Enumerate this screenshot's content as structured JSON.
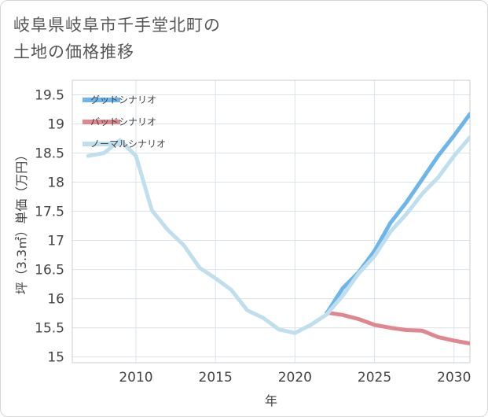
{
  "title_lines": [
    "岐阜県岐阜市千手堂北町の",
    "土地の価格推移"
  ],
  "colors": {
    "good": "#6cb6ec",
    "bad": "#e0868f",
    "normal": "#bfdfee",
    "grid": "#dbe3ea",
    "border": "#cccccc"
  },
  "chart_data": {
    "type": "line",
    "title": "岐阜県岐阜市千手堂北町の土地の価格推移",
    "xlabel": "年",
    "ylabel": "坪（3.3㎡）単価（万円）",
    "xlim": [
      2006,
      2031
    ],
    "ylim": [
      14.9,
      19.75
    ],
    "xticks": [
      2010,
      2015,
      2020,
      2025,
      2030
    ],
    "yticks": [
      15,
      15.5,
      16,
      16.5,
      17,
      17.5,
      18,
      18.5,
      19,
      19.5
    ],
    "legend_position": "top-left",
    "series": [
      {
        "name": "グッドシナリオ",
        "color_key": "good",
        "x": [
          2022,
          2023,
          2024,
          2025,
          2026,
          2027,
          2028,
          2029,
          2030,
          2031
        ],
        "values": [
          15.75,
          16.18,
          16.45,
          16.82,
          17.3,
          17.65,
          18.05,
          18.45,
          18.8,
          19.17
        ]
      },
      {
        "name": "バッドシナリオ",
        "color_key": "bad",
        "x": [
          2022,
          2023,
          2024,
          2025,
          2026,
          2027,
          2028,
          2029,
          2030,
          2031
        ],
        "values": [
          15.76,
          15.72,
          15.65,
          15.55,
          15.5,
          15.46,
          15.45,
          15.34,
          15.28,
          15.23
        ]
      },
      {
        "name": "ノーマルシナリオ",
        "color_key": "normal",
        "x": [
          2007,
          2008,
          2009,
          2010,
          2011,
          2012,
          2013,
          2014,
          2015,
          2016,
          2017,
          2018,
          2019,
          2020,
          2021,
          2022,
          2023,
          2024,
          2025,
          2026,
          2027,
          2028,
          2029,
          2030,
          2031
        ],
        "values": [
          18.45,
          18.5,
          18.72,
          18.45,
          17.52,
          17.18,
          16.92,
          16.53,
          16.35,
          16.15,
          15.8,
          15.67,
          15.47,
          15.41,
          15.55,
          15.73,
          16.05,
          16.43,
          16.73,
          17.15,
          17.45,
          17.8,
          18.08,
          18.45,
          18.77
        ]
      }
    ]
  }
}
